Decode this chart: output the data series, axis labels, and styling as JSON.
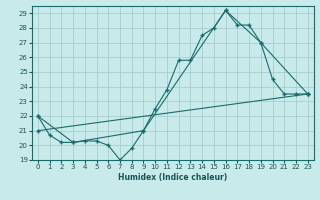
{
  "xlabel": "Humidex (Indice chaleur)",
  "xlim": [
    -0.5,
    23.5
  ],
  "ylim": [
    19,
    29.5
  ],
  "yticks": [
    19,
    20,
    21,
    22,
    23,
    24,
    25,
    26,
    27,
    28,
    29
  ],
  "xticks": [
    0,
    1,
    2,
    3,
    4,
    5,
    6,
    7,
    8,
    9,
    10,
    11,
    12,
    13,
    14,
    15,
    16,
    17,
    18,
    19,
    20,
    21,
    22,
    23
  ],
  "bg_color": "#c8eaea",
  "grid_color": "#a0c8c8",
  "line_color": "#1a6b6b",
  "line1_x": [
    0,
    1,
    2,
    3,
    4,
    5,
    6,
    7,
    8,
    9,
    10,
    11,
    12,
    13,
    14,
    15,
    16,
    17,
    18,
    19,
    20,
    21,
    22,
    23
  ],
  "line1_y": [
    22.0,
    20.7,
    20.2,
    20.2,
    20.3,
    20.3,
    20.0,
    19.0,
    19.8,
    21.0,
    22.5,
    23.8,
    25.8,
    25.8,
    27.5,
    28.0,
    29.2,
    28.2,
    28.2,
    27.0,
    24.5,
    23.5,
    23.5,
    23.5
  ],
  "line2_x": [
    0,
    3,
    9,
    16,
    19,
    23
  ],
  "line2_y": [
    22.0,
    20.2,
    21.0,
    29.2,
    27.0,
    23.5
  ],
  "line3_x": [
    0,
    23
  ],
  "line3_y": [
    21.0,
    23.5
  ]
}
